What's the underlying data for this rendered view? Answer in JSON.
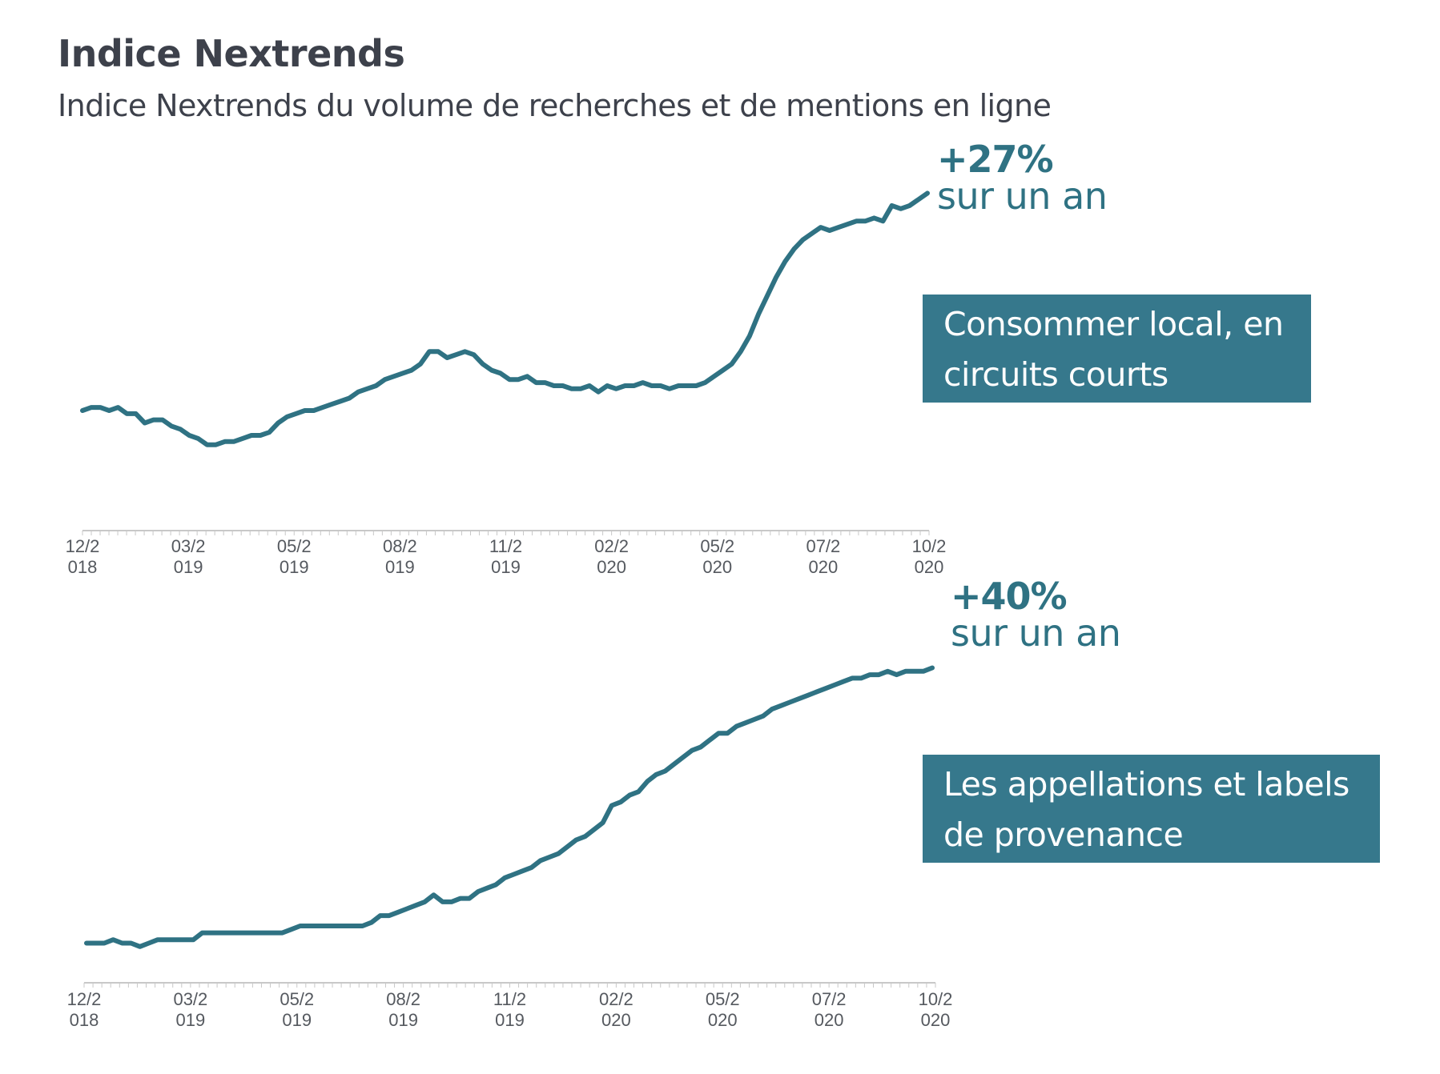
{
  "header": {
    "title": "Indice Nextrends",
    "subtitle": "Indice Nextrends du volume de recherches et de mentions en ligne"
  },
  "colors": {
    "line": "#2f7283",
    "tag_bg": "#36788c",
    "text": "#3d414b",
    "axis": "#c8c8c8"
  },
  "chart_data": [
    {
      "type": "line",
      "title": "Consommer local, en circuits courts",
      "annotation": {
        "value": "+27%",
        "label": "sur un an"
      },
      "xlabel": "",
      "ylabel": "",
      "x_tick_labels": [
        [
          "12/2",
          "018"
        ],
        [
          "03/2",
          "019"
        ],
        [
          "05/2",
          "019"
        ],
        [
          "08/2",
          "019"
        ],
        [
          "11/2",
          "019"
        ],
        [
          "02/2",
          "020"
        ],
        [
          "05/2",
          "020"
        ],
        [
          "07/2",
          "020"
        ],
        [
          "10/2",
          "020"
        ]
      ],
      "x_range_weeks": [
        0,
        96
      ],
      "ylim": [
        0,
        100
      ],
      "grid": false,
      "series": [
        {
          "name": "Consommer local, en circuits courts",
          "values": [
            25,
            26,
            26,
            25,
            26,
            24,
            24,
            21,
            22,
            22,
            20,
            19,
            17,
            16,
            14,
            14,
            15,
            15,
            16,
            17,
            17,
            18,
            21,
            23,
            24,
            25,
            25,
            26,
            27,
            28,
            29,
            31,
            32,
            33,
            35,
            36,
            37,
            38,
            40,
            44,
            44,
            42,
            43,
            44,
            43,
            40,
            38,
            37,
            35,
            35,
            36,
            34,
            34,
            33,
            33,
            32,
            32,
            33,
            31,
            33,
            32,
            33,
            33,
            34,
            33,
            33,
            32,
            33,
            33,
            33,
            34,
            36,
            38,
            40,
            44,
            49,
            56,
            62,
            68,
            73,
            77,
            80,
            82,
            84,
            83,
            84,
            85,
            86,
            86,
            87,
            86,
            91,
            90,
            91,
            93,
            95
          ]
        }
      ]
    },
    {
      "type": "line",
      "title": "Les appellations et labels de provenance",
      "annotation": {
        "value": "+40%",
        "label": "sur un an"
      },
      "xlabel": "",
      "ylabel": "",
      "x_tick_labels": [
        [
          "12/2",
          "018"
        ],
        [
          "03/2",
          "019"
        ],
        [
          "05/2",
          "019"
        ],
        [
          "08/2",
          "019"
        ],
        [
          "11/2",
          "019"
        ],
        [
          "02/2",
          "020"
        ],
        [
          "05/2",
          "020"
        ],
        [
          "07/2",
          "020"
        ],
        [
          "10/2",
          "020"
        ]
      ],
      "x_range_weeks": [
        0,
        96
      ],
      "ylim": [
        0,
        100
      ],
      "grid": false,
      "series": [
        {
          "name": "Les appellations et labels de provenance",
          "values": [
            5,
            5,
            5,
            6,
            5,
            5,
            4,
            5,
            6,
            6,
            6,
            6,
            6,
            8,
            8,
            8,
            8,
            8,
            8,
            8,
            8,
            8,
            8,
            9,
            10,
            10,
            10,
            10,
            10,
            10,
            10,
            10,
            11,
            13,
            13,
            14,
            15,
            16,
            17,
            19,
            17,
            17,
            18,
            18,
            20,
            21,
            22,
            24,
            25,
            26,
            27,
            29,
            30,
            31,
            33,
            35,
            36,
            38,
            40,
            45,
            46,
            48,
            49,
            52,
            54,
            55,
            57,
            59,
            61,
            62,
            64,
            66,
            66,
            68,
            69,
            70,
            71,
            73,
            74,
            75,
            76,
            77,
            78,
            79,
            80,
            81,
            82,
            82,
            83,
            83,
            84,
            83,
            84,
            84,
            84,
            85
          ]
        }
      ]
    }
  ]
}
